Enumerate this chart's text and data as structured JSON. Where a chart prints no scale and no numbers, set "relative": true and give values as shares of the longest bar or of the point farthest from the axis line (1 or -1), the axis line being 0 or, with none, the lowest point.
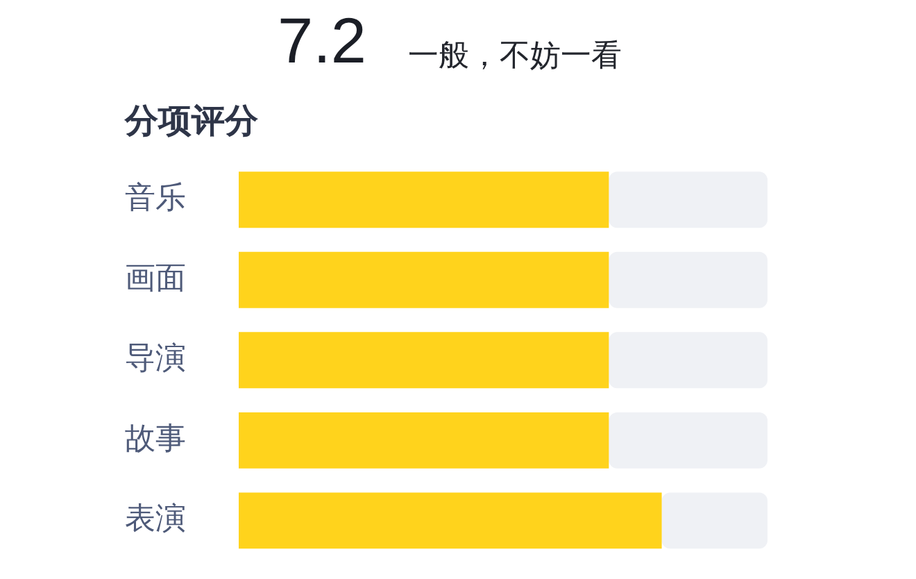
{
  "chart_data": {
    "type": "bar",
    "orientation": "horizontal",
    "stacked": true,
    "relative": true,
    "title": "分项评分",
    "annotations": [
      "7.2",
      "一般，不妨一看"
    ],
    "categories": [
      "音乐",
      "画面",
      "导演",
      "故事",
      "表演"
    ],
    "series": [
      {
        "color": "#ffd31c",
        "values": [
          0.7,
          0.7,
          0.7,
          0.7,
          0.8
        ]
      },
      {
        "color": "#eff1f5",
        "values": [
          0.3,
          0.3,
          0.3,
          0.3,
          0.2
        ]
      }
    ]
  }
}
